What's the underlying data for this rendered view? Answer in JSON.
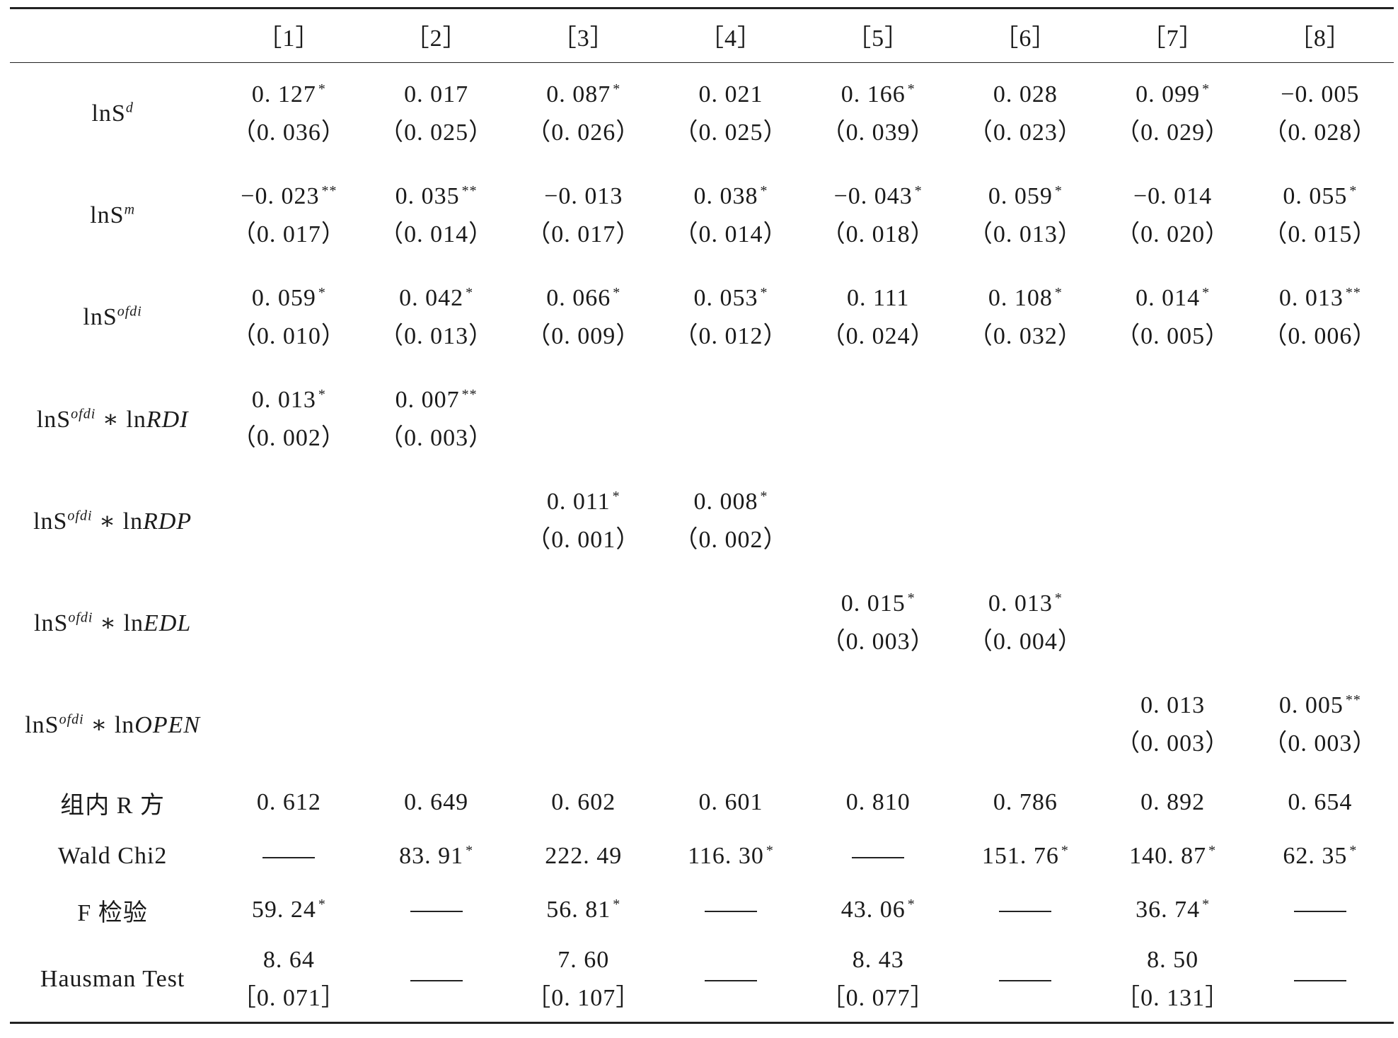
{
  "columns": [
    "［1］",
    "［2］",
    "［3］",
    "［4］",
    "［5］",
    "［6］",
    "［7］",
    "［8］"
  ],
  "rows": [
    {
      "label": {
        "base": "lnS",
        "sup": "d",
        "interaction": ""
      },
      "cells": [
        {
          "coef": "0. 127",
          "stars": "*",
          "se": "（0. 036）"
        },
        {
          "coef": "0. 017",
          "stars": "",
          "se": "（0. 025）"
        },
        {
          "coef": "0. 087",
          "stars": "*",
          "se": "（0. 026）"
        },
        {
          "coef": "0. 021",
          "stars": "",
          "se": "（0. 025）"
        },
        {
          "coef": "0. 166",
          "stars": "*",
          "se": "（0. 039）"
        },
        {
          "coef": "0. 028",
          "stars": "",
          "se": "（0. 023）"
        },
        {
          "coef": "0. 099",
          "stars": "*",
          "se": "（0. 029）"
        },
        {
          "coef": "−0. 005",
          "stars": "",
          "se": "（0. 028）"
        }
      ]
    },
    {
      "label": {
        "base": "lnS",
        "sup": "m",
        "interaction": ""
      },
      "cells": [
        {
          "coef": "−0. 023",
          "stars": "**",
          "se": "（0. 017）"
        },
        {
          "coef": "0. 035",
          "stars": "**",
          "se": "（0. 014）"
        },
        {
          "coef": "−0. 013",
          "stars": "",
          "se": "（0. 017）"
        },
        {
          "coef": "0. 038",
          "stars": "*",
          "se": "（0. 014）"
        },
        {
          "coef": "−0. 043",
          "stars": "*",
          "se": "（0. 018）"
        },
        {
          "coef": "0. 059",
          "stars": "*",
          "se": "（0. 013）"
        },
        {
          "coef": "−0. 014",
          "stars": "",
          "se": "（0. 020）"
        },
        {
          "coef": "0. 055",
          "stars": "*",
          "se": "（0. 015）"
        }
      ]
    },
    {
      "label": {
        "base": "lnS",
        "sup": "ofdi",
        "interaction": ""
      },
      "cells": [
        {
          "coef": "0. 059",
          "stars": "*",
          "se": "（0. 010）"
        },
        {
          "coef": "0. 042",
          "stars": "*",
          "se": "（0. 013）"
        },
        {
          "coef": "0. 066",
          "stars": "*",
          "se": "（0. 009）"
        },
        {
          "coef": "0. 053",
          "stars": "*",
          "se": "（0. 012）"
        },
        {
          "coef": "0. 111",
          "stars": "",
          "se": "（0. 024）"
        },
        {
          "coef": "0. 108",
          "stars": "*",
          "se": "（0. 032）"
        },
        {
          "coef": "0. 014",
          "stars": "*",
          "se": "（0. 005）"
        },
        {
          "coef": "0. 013",
          "stars": "**",
          "se": "（0. 006）"
        }
      ]
    },
    {
      "label": {
        "base": "lnS",
        "sup": "ofdi",
        "interaction": "RDI"
      },
      "cells": [
        {
          "coef": "0. 013",
          "stars": "*",
          "se": "（0. 002）"
        },
        {
          "coef": "0. 007",
          "stars": "**",
          "se": "（0. 003）"
        },
        {
          "coef": "",
          "stars": "",
          "se": ""
        },
        {
          "coef": "",
          "stars": "",
          "se": ""
        },
        {
          "coef": "",
          "stars": "",
          "se": ""
        },
        {
          "coef": "",
          "stars": "",
          "se": ""
        },
        {
          "coef": "",
          "stars": "",
          "se": ""
        },
        {
          "coef": "",
          "stars": "",
          "se": ""
        }
      ]
    },
    {
      "label": {
        "base": "lnS",
        "sup": "ofdi",
        "interaction": "RDP"
      },
      "cells": [
        {
          "coef": "",
          "stars": "",
          "se": ""
        },
        {
          "coef": "",
          "stars": "",
          "se": ""
        },
        {
          "coef": "0. 011",
          "stars": "*",
          "se": "（0. 001）"
        },
        {
          "coef": "0. 008",
          "stars": "*",
          "se": "（0. 002）"
        },
        {
          "coef": "",
          "stars": "",
          "se": ""
        },
        {
          "coef": "",
          "stars": "",
          "se": ""
        },
        {
          "coef": "",
          "stars": "",
          "se": ""
        },
        {
          "coef": "",
          "stars": "",
          "se": ""
        }
      ]
    },
    {
      "label": {
        "base": "lnS",
        "sup": "ofdi",
        "interaction": "EDL"
      },
      "cells": [
        {
          "coef": "",
          "stars": "",
          "se": ""
        },
        {
          "coef": "",
          "stars": "",
          "se": ""
        },
        {
          "coef": "",
          "stars": "",
          "se": ""
        },
        {
          "coef": "",
          "stars": "",
          "se": ""
        },
        {
          "coef": "0. 015",
          "stars": "*",
          "se": "（0. 003）"
        },
        {
          "coef": "0. 013",
          "stars": "*",
          "se": "（0. 004）"
        },
        {
          "coef": "",
          "stars": "",
          "se": ""
        },
        {
          "coef": "",
          "stars": "",
          "se": ""
        }
      ]
    },
    {
      "label": {
        "base": "lnS",
        "sup": "ofdi",
        "interaction": "OPEN"
      },
      "cells": [
        {
          "coef": "",
          "stars": "",
          "se": ""
        },
        {
          "coef": "",
          "stars": "",
          "se": ""
        },
        {
          "coef": "",
          "stars": "",
          "se": ""
        },
        {
          "coef": "",
          "stars": "",
          "se": ""
        },
        {
          "coef": "",
          "stars": "",
          "se": ""
        },
        {
          "coef": "",
          "stars": "",
          "se": ""
        },
        {
          "coef": "0. 013",
          "stars": "",
          "se": "（0. 003）"
        },
        {
          "coef": "0. 005",
          "stars": "**",
          "se": "（0. 003）"
        }
      ]
    }
  ],
  "interaction_operator": " ∗ ",
  "interaction_prefix": "ln",
  "stats": {
    "r2": {
      "label": "组内 R 方",
      "values": [
        {
          "v": "0. 612",
          "stars": ""
        },
        {
          "v": "0. 649",
          "stars": ""
        },
        {
          "v": "0. 602",
          "stars": ""
        },
        {
          "v": "0. 601",
          "stars": ""
        },
        {
          "v": "0. 810",
          "stars": ""
        },
        {
          "v": "0. 786",
          "stars": ""
        },
        {
          "v": "0. 892",
          "stars": ""
        },
        {
          "v": "0. 654",
          "stars": ""
        }
      ]
    },
    "wald": {
      "label": "Wald Chi2",
      "values": [
        {
          "v": "",
          "stars": "",
          "dash": true
        },
        {
          "v": "83. 91",
          "stars": "*"
        },
        {
          "v": "222. 49",
          "stars": ""
        },
        {
          "v": "116. 30",
          "stars": "*"
        },
        {
          "v": "",
          "stars": "",
          "dash": true
        },
        {
          "v": "151. 76",
          "stars": "*"
        },
        {
          "v": "140. 87",
          "stars": "*"
        },
        {
          "v": "62. 35",
          "stars": "*"
        }
      ]
    },
    "f_test": {
      "label": "F 检验",
      "values": [
        {
          "v": "59. 24",
          "stars": "*"
        },
        {
          "v": "",
          "stars": "",
          "dash": true
        },
        {
          "v": "56. 81",
          "stars": "*"
        },
        {
          "v": "",
          "stars": "",
          "dash": true
        },
        {
          "v": "43. 06",
          "stars": "*"
        },
        {
          "v": "",
          "stars": "",
          "dash": true
        },
        {
          "v": "36. 74",
          "stars": "*"
        },
        {
          "v": "",
          "stars": "",
          "dash": true
        }
      ]
    },
    "hausman": {
      "label": "Hausman Test",
      "values": [
        {
          "v": "8. 64",
          "p": "［0. 071］"
        },
        {
          "v": "",
          "p": "",
          "dash": true
        },
        {
          "v": "7. 60",
          "p": "［0. 107］"
        },
        {
          "v": "",
          "p": "",
          "dash": true
        },
        {
          "v": "8. 43",
          "p": "［0. 077］"
        },
        {
          "v": "",
          "p": "",
          "dash": true
        },
        {
          "v": "8. 50",
          "p": "［0. 131］"
        },
        {
          "v": "",
          "p": "",
          "dash": true
        }
      ]
    }
  }
}
